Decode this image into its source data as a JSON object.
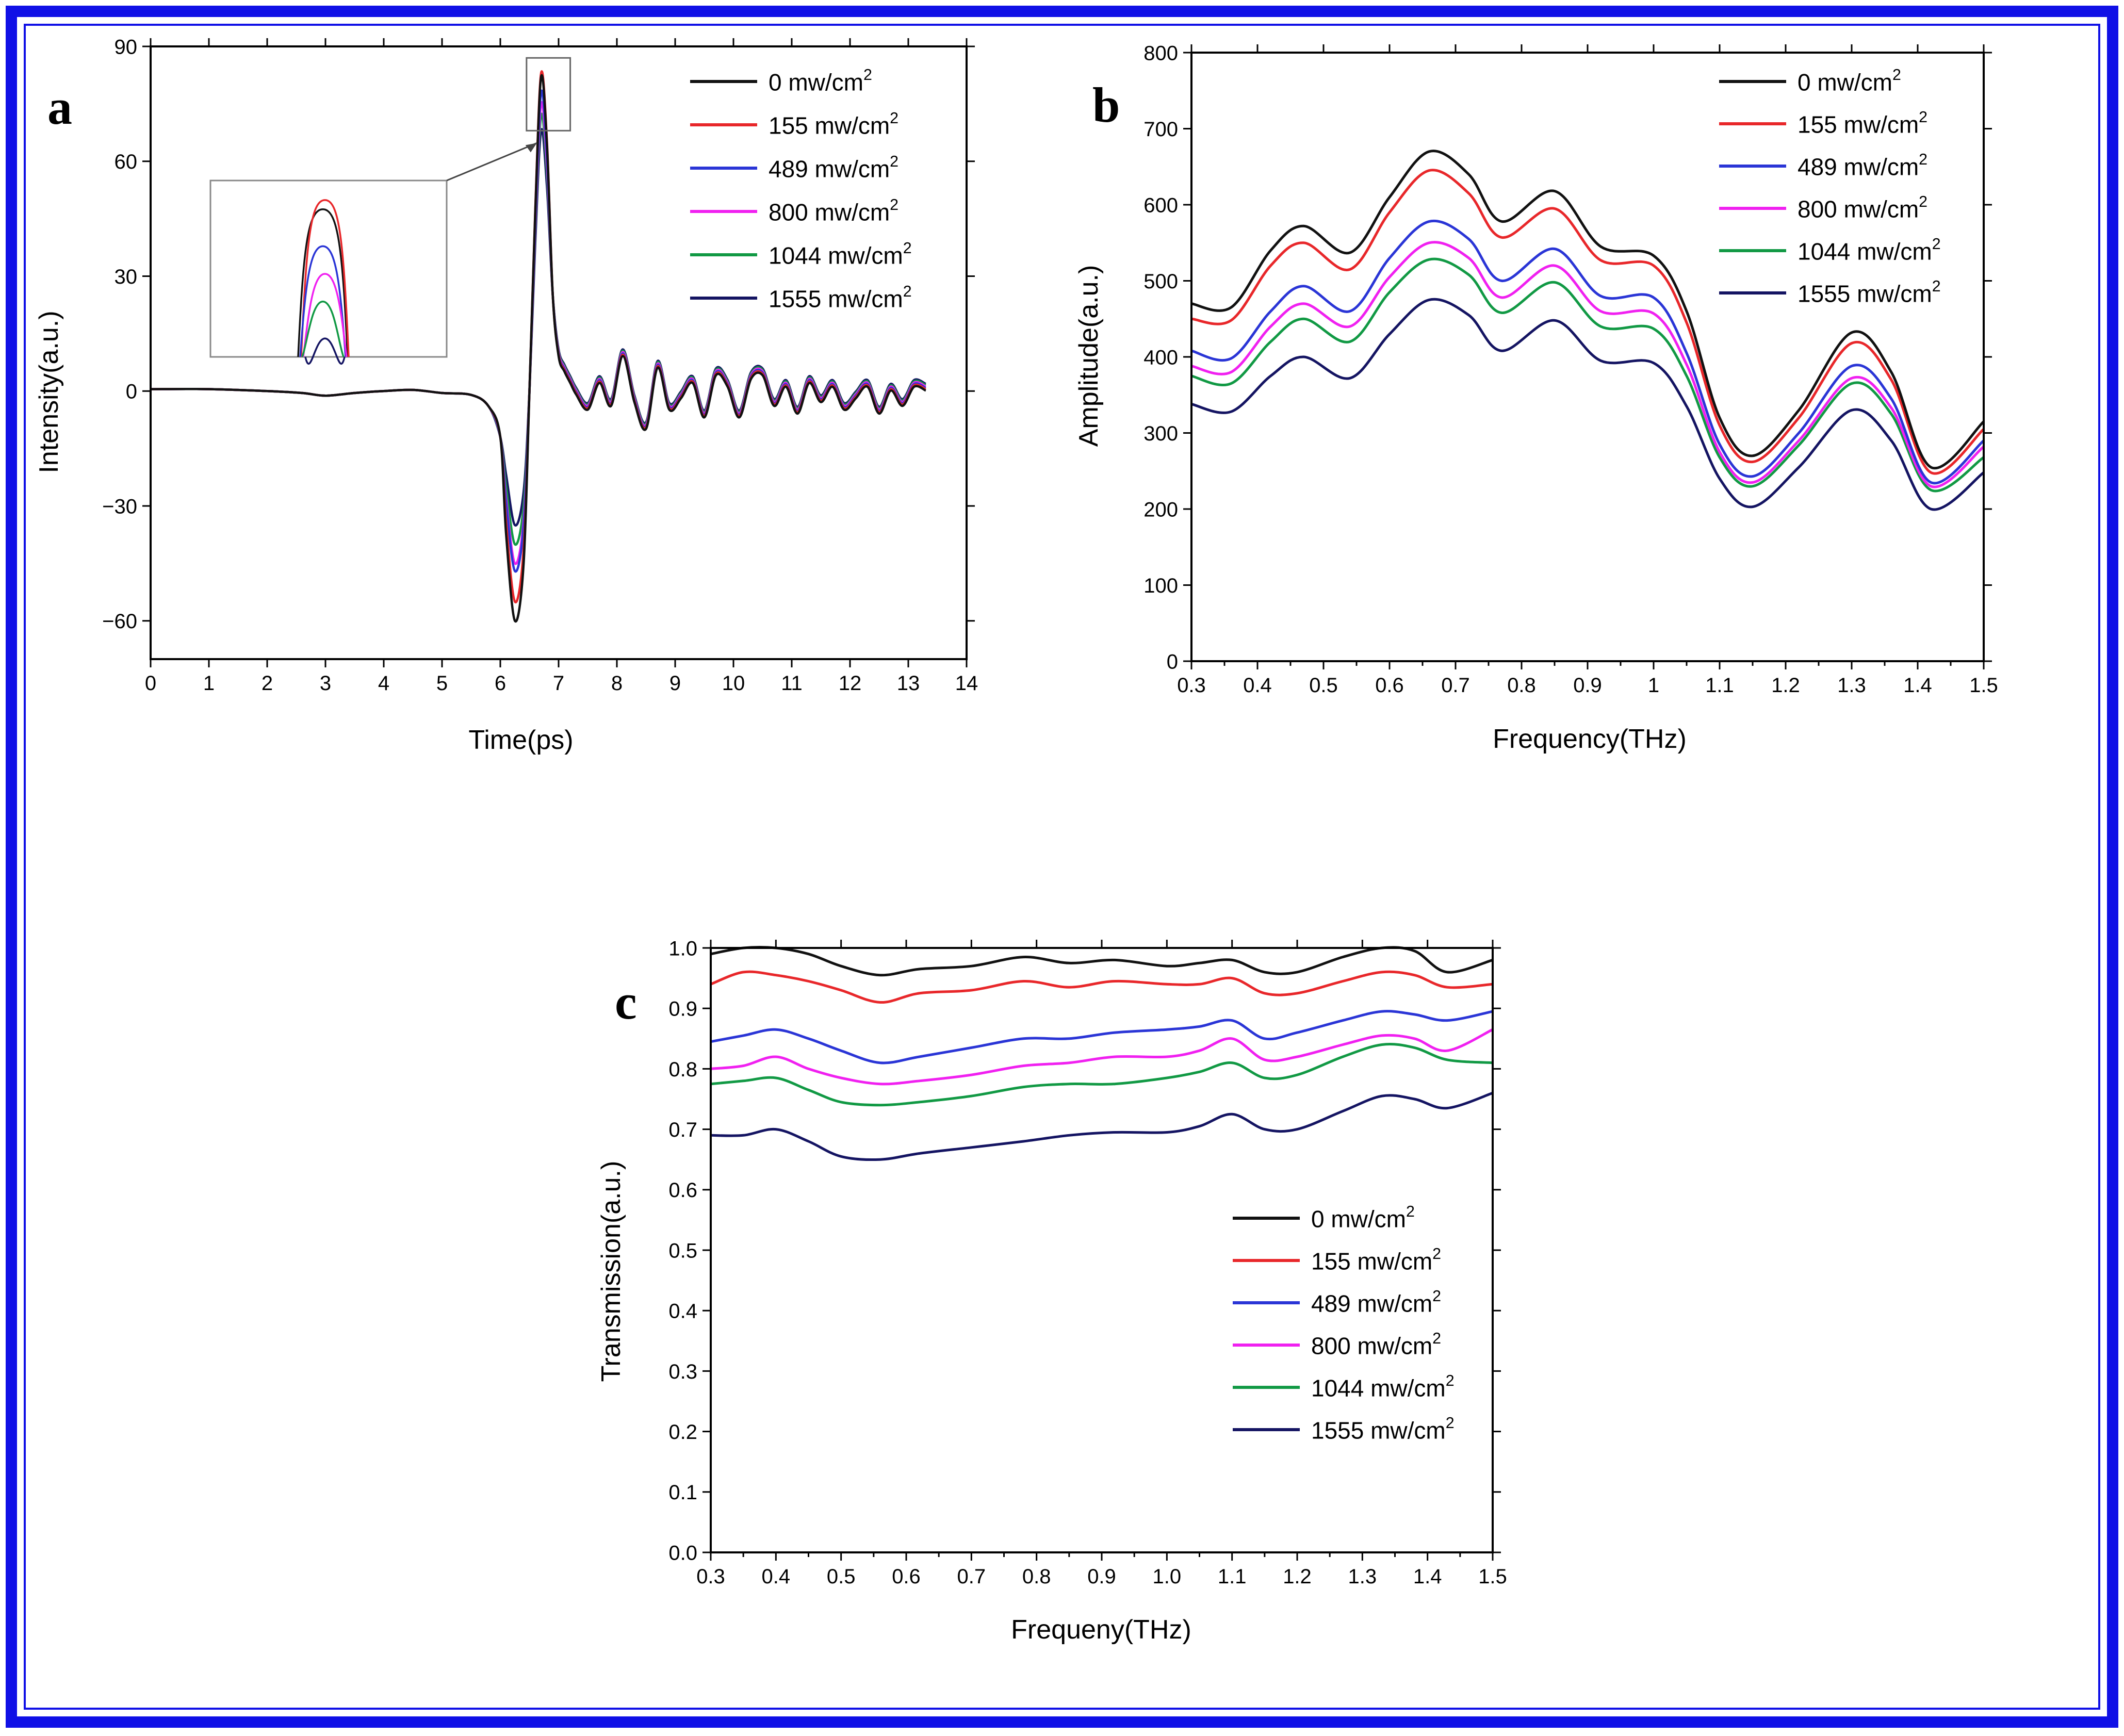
{
  "frame": {
    "border_color": "#1010e6"
  },
  "series_colors": {
    "0 mw/cm2": "#111111",
    "155 mw/cm2": "#e8272a",
    "489 mw/cm2": "#2a35d6",
    "800 mw/cm2": "#f020f0",
    "1044 mw/cm2": "#119944",
    "1555 mw/cm2": "#141462"
  },
  "chart_data": [
    {
      "panel": "a",
      "type": "line",
      "xlabel": "Time(ps)",
      "ylabel": "Intensity(a.u.)",
      "xlim": [
        0,
        14
      ],
      "ylim": [
        -70,
        90
      ],
      "xticks": [
        0,
        1,
        2,
        3,
        4,
        5,
        6,
        7,
        8,
        9,
        10,
        11,
        12,
        13,
        14
      ],
      "yticks": [
        -60,
        -30,
        0,
        30,
        60,
        90
      ],
      "ytick_labels": [
        "−60",
        "−30",
        "0",
        "30",
        "60",
        "90"
      ],
      "grid": false,
      "legend_position": "top-right",
      "inset": "zoom of the main peak near 6.7 ps",
      "legend": [
        {
          "label": "0 mw/cm",
          "sup": "2"
        },
        {
          "label": "155 mw/cm",
          "sup": "2"
        },
        {
          "label": "489 mw/cm",
          "sup": "2"
        },
        {
          "label": "800 mw/cm",
          "sup": "2"
        },
        {
          "label": "1044 mw/cm",
          "sup": "2"
        },
        {
          "label": "1555 mw/cm",
          "sup": "2"
        }
      ],
      "base_waveform": {
        "x": [
          0,
          1,
          2,
          2.6,
          3,
          3.5,
          4,
          4.5,
          5,
          5.5,
          5.8,
          6.0,
          6.1,
          6.25,
          6.4,
          6.5,
          6.6,
          6.7,
          6.8,
          6.9,
          7.0,
          7.1,
          7.2,
          7.3,
          7.5,
          7.7,
          7.9,
          8.1,
          8.3,
          8.5,
          8.7,
          8.9,
          9.1,
          9.3,
          9.5,
          9.7,
          9.9,
          10.1,
          10.3,
          10.5,
          10.7,
          10.9,
          11.1,
          11.3,
          11.5,
          11.7,
          11.9,
          12.1,
          12.3,
          12.5,
          12.7,
          12.9,
          13.1,
          13.3
        ],
        "y": [
          0.5,
          0.5,
          0,
          -0.5,
          -1.2,
          -0.5,
          0,
          0.3,
          -0.5,
          -1,
          -4,
          -12,
          -25,
          -40,
          -30,
          0,
          40,
          70,
          55,
          25,
          10,
          6,
          3,
          0,
          -4,
          3,
          -3,
          10,
          -2,
          -9,
          7,
          -4,
          -1,
          3,
          -6,
          5,
          2,
          -6,
          4,
          5,
          -3,
          2,
          -5,
          3,
          -2,
          2,
          -4,
          -1,
          2,
          -5,
          1,
          -3,
          2,
          1
        ]
      },
      "series": [
        {
          "name": "0 mw/cm2",
          "trough": -60,
          "peak": 82
        },
        {
          "name": "155 mw/cm2",
          "trough": -55,
          "peak": 83
        },
        {
          "name": "489 mw/cm2",
          "trough": -47,
          "peak": 78
        },
        {
          "name": "800 mw/cm2",
          "trough": -45,
          "peak": 75
        },
        {
          "name": "1044 mw/cm2",
          "trough": -40,
          "peak": 72
        },
        {
          "name": "1555 mw/cm2",
          "trough": -35,
          "peak": 68
        }
      ]
    },
    {
      "panel": "b",
      "type": "line",
      "xlabel": "Frequency(THz)",
      "ylabel": "Amplitude(a.u.)",
      "xlim": [
        0.3,
        1.5
      ],
      "ylim": [
        0,
        800
      ],
      "xticks": [
        0.3,
        0.4,
        0.5,
        0.6,
        0.7,
        0.8,
        0.9,
        1.0,
        1.1,
        1.2,
        1.3,
        1.4,
        1.5
      ],
      "yticks": [
        0,
        100,
        200,
        300,
        400,
        500,
        600,
        700,
        800
      ],
      "grid": false,
      "legend_position": "top-right",
      "legend": [
        {
          "label": "0 mw/cm",
          "sup": "2"
        },
        {
          "label": "155 mw/cm",
          "sup": "2"
        },
        {
          "label": "489 mw/cm",
          "sup": "2"
        },
        {
          "label": "800 mw/cm",
          "sup": "2"
        },
        {
          "label": "1044 mw/cm",
          "sup": "2"
        },
        {
          "label": "1555 mw/cm",
          "sup": "2"
        }
      ],
      "x": [
        0.3,
        0.36,
        0.42,
        0.47,
        0.54,
        0.6,
        0.66,
        0.72,
        0.77,
        0.85,
        0.92,
        1.0,
        1.05,
        1.1,
        1.15,
        1.22,
        1.3,
        1.36,
        1.42,
        1.5
      ],
      "series": [
        {
          "name": "0 mw/cm2",
          "values": [
            470,
            465,
            540,
            572,
            537,
            610,
            670,
            640,
            578,
            618,
            545,
            533,
            460,
            320,
            270,
            330,
            432,
            380,
            255,
            315
          ]
        },
        {
          "name": "155 mw/cm2",
          "values": [
            450,
            448,
            520,
            550,
            515,
            590,
            645,
            615,
            557,
            595,
            527,
            520,
            445,
            310,
            262,
            320,
            418,
            370,
            248,
            305
          ]
        },
        {
          "name": "489 mw/cm2",
          "values": [
            408,
            398,
            460,
            493,
            460,
            530,
            578,
            555,
            500,
            542,
            480,
            478,
            405,
            285,
            243,
            300,
            388,
            345,
            235,
            290
          ]
        },
        {
          "name": "800 mw/cm2",
          "values": [
            388,
            380,
            440,
            470,
            440,
            505,
            550,
            530,
            478,
            520,
            460,
            457,
            390,
            275,
            235,
            290,
            372,
            333,
            230,
            282
          ]
        },
        {
          "name": "1044 mw/cm2",
          "values": [
            375,
            365,
            420,
            450,
            420,
            485,
            528,
            508,
            458,
            498,
            440,
            437,
            375,
            268,
            230,
            284,
            365,
            325,
            225,
            268
          ]
        },
        {
          "name": "1555 mw/cm2",
          "values": [
            338,
            328,
            375,
            400,
            372,
            430,
            475,
            455,
            408,
            448,
            395,
            392,
            335,
            240,
            203,
            255,
            330,
            290,
            200,
            248
          ]
        }
      ]
    },
    {
      "panel": "c",
      "type": "line",
      "xlabel": "Frequeny(THz)",
      "ylabel": "Transmission(a.u.)",
      "xlim": [
        0.3,
        1.5
      ],
      "ylim": [
        0.0,
        1.0
      ],
      "xticks": [
        0.3,
        0.4,
        0.5,
        0.6,
        0.7,
        0.8,
        0.9,
        1.0,
        1.1,
        1.2,
        1.3,
        1.4,
        1.5
      ],
      "yticks": [
        0.0,
        0.1,
        0.2,
        0.3,
        0.4,
        0.5,
        0.6,
        0.7,
        0.8,
        0.9,
        1.0
      ],
      "ytick_labels": [
        "0.0",
        "0.1",
        "0.2",
        "0.3",
        "0.4",
        "0.5",
        "0.6",
        "0.7",
        "0.8",
        "0.9",
        "1.0"
      ],
      "xtick_labels": [
        "0.3",
        "0.4",
        "0.5",
        "0.6",
        "0.7",
        "0.8",
        "0.9",
        "1.0",
        "1.1",
        "1.2",
        "1.3",
        "1.4",
        "1.5"
      ],
      "grid": false,
      "legend_position": "lower-right",
      "legend": [
        {
          "label": "0 mw/cm",
          "sup": "2"
        },
        {
          "label": "155 mw/cm",
          "sup": "2"
        },
        {
          "label": "489 mw/cm",
          "sup": "2"
        },
        {
          "label": "800 mw/cm",
          "sup": "2"
        },
        {
          "label": "1044 mw/cm",
          "sup": "2"
        },
        {
          "label": "1555 mw/cm",
          "sup": "2"
        }
      ],
      "x": [
        0.3,
        0.35,
        0.4,
        0.45,
        0.5,
        0.56,
        0.62,
        0.7,
        0.78,
        0.85,
        0.92,
        1.0,
        1.05,
        1.1,
        1.15,
        1.2,
        1.27,
        1.33,
        1.38,
        1.43,
        1.5
      ],
      "series": [
        {
          "name": "0 mw/cm2",
          "values": [
            0.99,
            1.0,
            1.0,
            0.99,
            0.97,
            0.955,
            0.965,
            0.97,
            0.985,
            0.975,
            0.98,
            0.97,
            0.975,
            0.98,
            0.96,
            0.96,
            0.985,
            1.0,
            0.995,
            0.96,
            0.98
          ]
        },
        {
          "name": "155 mw/cm2",
          "values": [
            0.94,
            0.96,
            0.955,
            0.945,
            0.93,
            0.91,
            0.925,
            0.93,
            0.945,
            0.935,
            0.945,
            0.94,
            0.94,
            0.95,
            0.925,
            0.925,
            0.945,
            0.96,
            0.955,
            0.935,
            0.94
          ]
        },
        {
          "name": "489 mw/cm2",
          "values": [
            0.845,
            0.855,
            0.865,
            0.85,
            0.83,
            0.81,
            0.82,
            0.835,
            0.85,
            0.85,
            0.86,
            0.865,
            0.87,
            0.88,
            0.85,
            0.86,
            0.88,
            0.895,
            0.89,
            0.88,
            0.895
          ]
        },
        {
          "name": "800 mw/cm2",
          "values": [
            0.8,
            0.805,
            0.82,
            0.8,
            0.785,
            0.775,
            0.78,
            0.79,
            0.805,
            0.81,
            0.82,
            0.82,
            0.83,
            0.85,
            0.815,
            0.82,
            0.84,
            0.855,
            0.85,
            0.83,
            0.865
          ]
        },
        {
          "name": "1044 mw/cm2",
          "values": [
            0.775,
            0.78,
            0.785,
            0.765,
            0.745,
            0.74,
            0.745,
            0.755,
            0.77,
            0.775,
            0.775,
            0.785,
            0.795,
            0.81,
            0.785,
            0.79,
            0.82,
            0.84,
            0.835,
            0.815,
            0.81
          ]
        },
        {
          "name": "1555 mw/cm2",
          "values": [
            0.69,
            0.69,
            0.7,
            0.68,
            0.655,
            0.65,
            0.66,
            0.67,
            0.68,
            0.69,
            0.695,
            0.695,
            0.705,
            0.725,
            0.7,
            0.7,
            0.73,
            0.755,
            0.75,
            0.735,
            0.76
          ]
        }
      ]
    }
  ]
}
